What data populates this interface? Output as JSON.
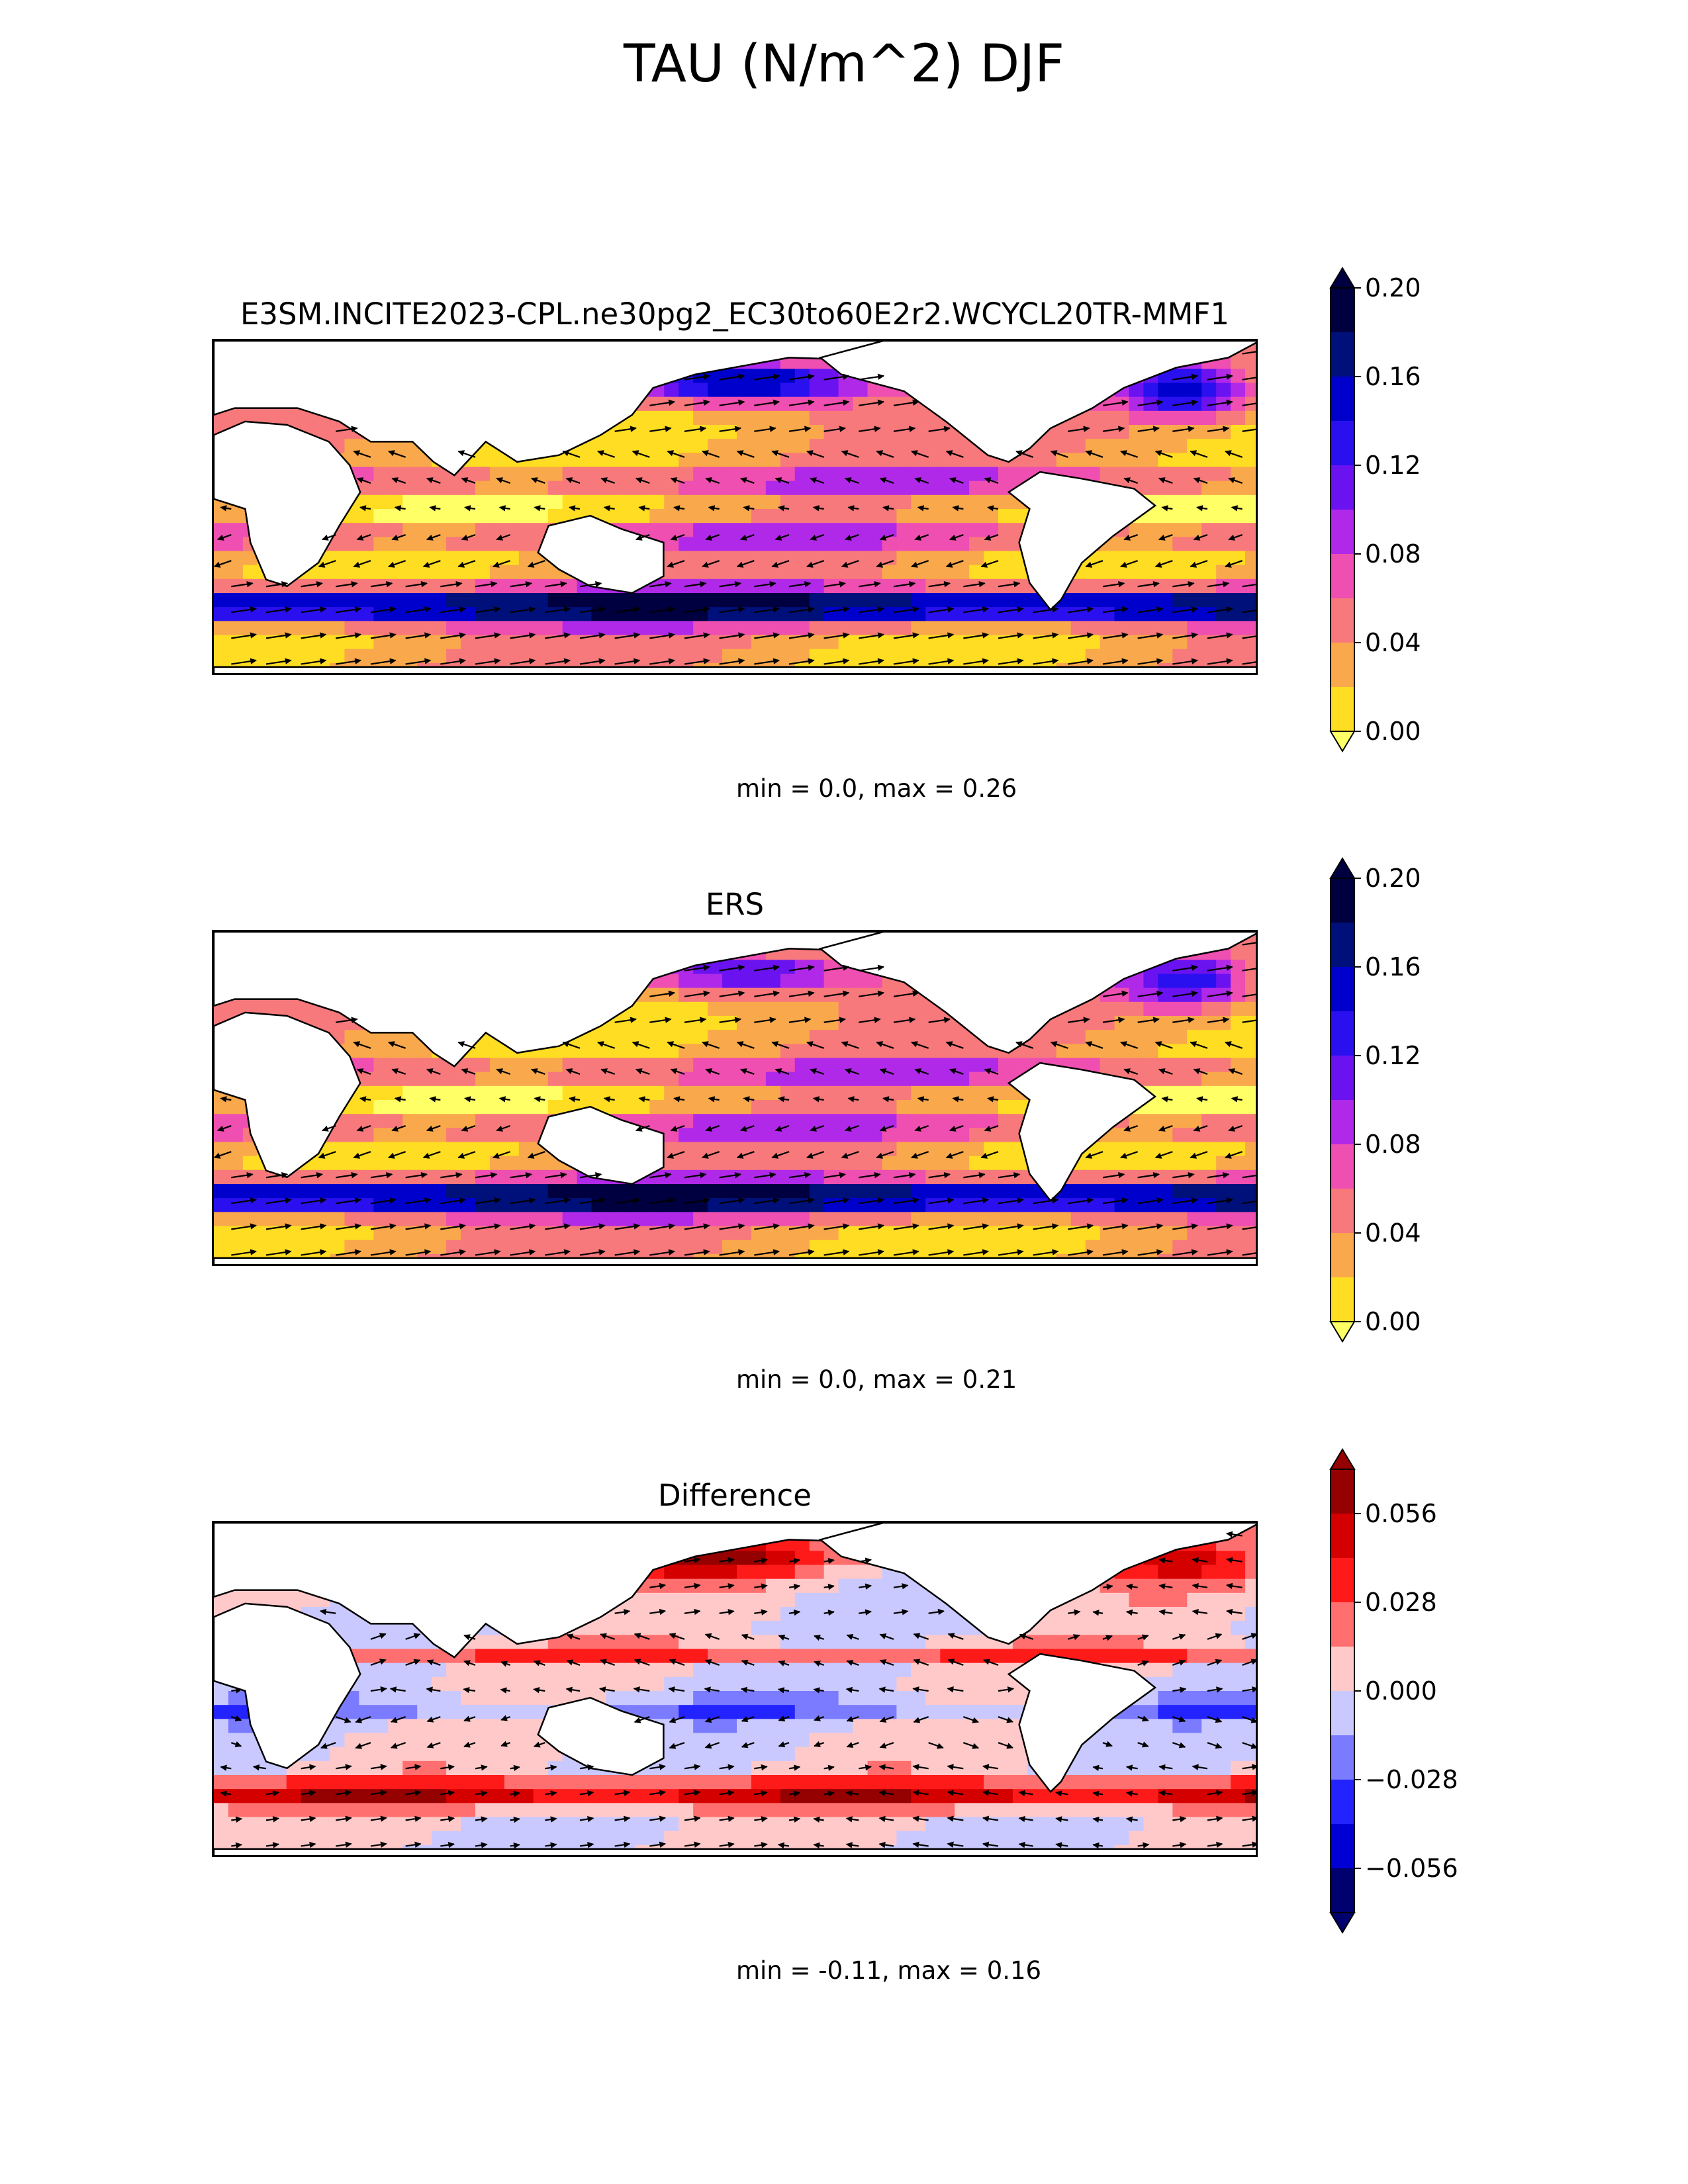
{
  "figure": {
    "title": "TAU (N/m^2) DJF"
  },
  "chart_data": [
    {
      "type": "map-contour",
      "title": "E3SM.INCITE2023-CPL.ne30pg2_EC30to60E2r2.WCYCL20TR-MMF1",
      "stats": "min = 0.0, max = 0.26",
      "colorbar": {
        "levels": [
          0.0,
          0.02,
          0.04,
          0.06,
          0.08,
          0.1,
          0.12,
          0.14,
          0.16,
          0.18,
          0.2
        ],
        "tick_labels": [
          "0.00",
          "0.04",
          "0.08",
          "0.12",
          "0.16",
          "0.20"
        ],
        "tick_values": [
          0.0,
          0.04,
          0.08,
          0.12,
          0.16,
          0.2
        ],
        "colors": [
          "#ffff66",
          "#ffdd22",
          "#f9a84b",
          "#f7797b",
          "#ee4fb1",
          "#b029e8",
          "#6a12f0",
          "#2a10ee",
          "#0000cc",
          "#00107a",
          "#000040"
        ],
        "extend": "both"
      }
    },
    {
      "type": "map-contour",
      "title": "ERS",
      "stats": "min = 0.0, max = 0.21",
      "colorbar": {
        "levels": [
          0.0,
          0.02,
          0.04,
          0.06,
          0.08,
          0.1,
          0.12,
          0.14,
          0.16,
          0.18,
          0.2
        ],
        "tick_labels": [
          "0.00",
          "0.04",
          "0.08",
          "0.12",
          "0.16",
          "0.20"
        ],
        "tick_values": [
          0.0,
          0.04,
          0.08,
          0.12,
          0.16,
          0.2
        ],
        "colors": [
          "#ffff66",
          "#ffdd22",
          "#f9a84b",
          "#f7797b",
          "#ee4fb1",
          "#b029e8",
          "#6a12f0",
          "#2a10ee",
          "#0000cc",
          "#00107a",
          "#000040"
        ],
        "extend": "both"
      }
    },
    {
      "type": "map-contour",
      "title": "Difference",
      "stats": "min = -0.11, max = 0.16",
      "colorbar": {
        "levels": [
          -0.07,
          -0.056,
          -0.042,
          -0.028,
          -0.014,
          0.0,
          0.014,
          0.028,
          0.042,
          0.056,
          0.07
        ],
        "tick_labels": [
          "−0.056",
          "−0.028",
          "0.000",
          "0.028",
          "0.056"
        ],
        "tick_values": [
          -0.056,
          -0.028,
          0.0,
          0.028,
          0.056
        ],
        "colors": [
          "#00006e",
          "#0000d4",
          "#2323ff",
          "#7b7bff",
          "#c9c9ff",
          "#ffc9c9",
          "#ff6f6f",
          "#ff1a1a",
          "#d40000",
          "#950000"
        ],
        "extend": "both"
      }
    }
  ]
}
